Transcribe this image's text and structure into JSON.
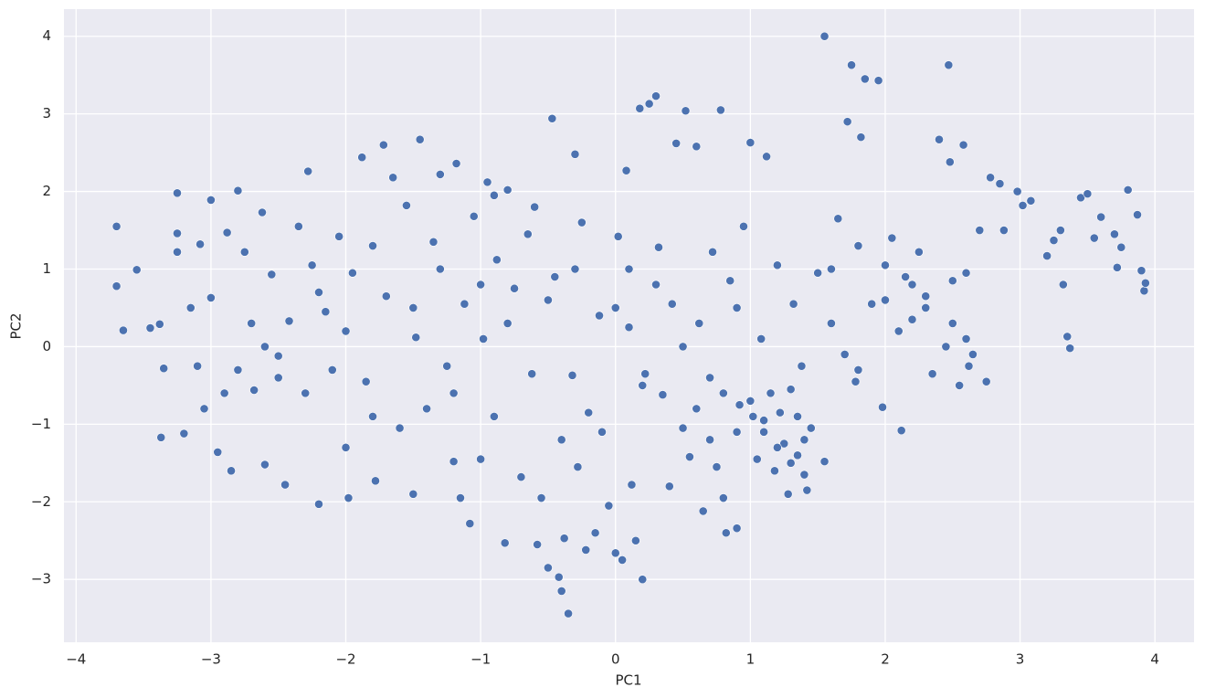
{
  "chart_data": {
    "type": "scatter",
    "x_label": "PC1",
    "y_label": "PC2",
    "color": "#4c72b0",
    "grid": true,
    "xlim": [
      -4.09,
      4.29
    ],
    "ylim": [
      -3.81,
      4.35
    ],
    "xticks": [
      {
        "value": -4,
        "label": "−4"
      },
      {
        "value": -3,
        "label": "−3"
      },
      {
        "value": -2,
        "label": "−2"
      },
      {
        "value": -1,
        "label": "−1"
      },
      0,
      1,
      2,
      3,
      4
    ],
    "yticks": [
      {
        "value": -3,
        "label": "−3"
      },
      {
        "value": -2,
        "label": "−2"
      },
      {
        "value": -1,
        "label": "−1"
      },
      0,
      1,
      2,
      3,
      4
    ],
    "x": [
      -3.7,
      -3.7,
      -3.65,
      -3.55,
      -3.45,
      -3.38,
      -3.35,
      -3.37,
      -3.25,
      -3.25,
      -3.25,
      -3.2,
      -3.15,
      -3.1,
      -3.08,
      -3.05,
      -3.0,
      -3.0,
      -2.95,
      -2.9,
      -2.88,
      -2.85,
      -2.8,
      -2.75,
      -2.7,
      -2.68,
      -2.62,
      -2.6,
      -2.55,
      -2.5,
      -2.45,
      -2.42,
      -2.35,
      -2.3,
      -2.28,
      -2.25,
      -2.2,
      -2.15,
      -2.1,
      -2.05,
      -2.0,
      -1.98,
      -1.95,
      -1.88,
      -1.85,
      -1.8,
      -1.78,
      -1.72,
      -1.7,
      -1.65,
      -1.6,
      -1.55,
      -1.5,
      -1.48,
      -1.45,
      -1.4,
      -1.35,
      -1.3,
      -1.25,
      -1.2,
      -1.18,
      -1.15,
      -1.12,
      -1.08,
      -1.05,
      -1.0,
      -0.98,
      -0.95,
      -0.9,
      -0.88,
      -0.82,
      -0.8,
      -0.75,
      -0.7,
      -0.65,
      -0.62,
      -0.58,
      -0.55,
      -0.5,
      -0.47,
      -0.45,
      -0.42,
      -0.4,
      -0.38,
      -0.35,
      -0.32,
      -0.3,
      -0.28,
      -0.25,
      -0.22,
      -0.2,
      -0.15,
      -0.12,
      -0.1,
      -0.05,
      0,
      0.02,
      0.05,
      0.08,
      0.1,
      0.12,
      0.15,
      0.18,
      0.2,
      0.22,
      0.25,
      0.3,
      0.32,
      0.35,
      0.4,
      0.42,
      0.45,
      0.5,
      0.52,
      0.55,
      0.6,
      0.62,
      0.65,
      0.7,
      0.72,
      0.75,
      0.78,
      0.8,
      0.82,
      0.85,
      0.9,
      0.92,
      0.95,
      1,
      1.02,
      1.05,
      1.08,
      1.1,
      1.12,
      1.15,
      1.18,
      1.2,
      1.22,
      1.25,
      1.28,
      1.3,
      1.32,
      1.35,
      1.38,
      1.4,
      1.42,
      1.45,
      1.5,
      1.55,
      1.55,
      1.6,
      1.65,
      1.7,
      1.72,
      1.75,
      1.78,
      1.8,
      1.82,
      1.85,
      1.9,
      1.95,
      1.98,
      2,
      2.05,
      2.1,
      2.12,
      2.15,
      2.2,
      2.25,
      2.3,
      2.35,
      2.4,
      2.45,
      2.47,
      2.48,
      2.5,
      2.55,
      2.58,
      2.6,
      2.62,
      2.7,
      2.75,
      2.78,
      2.85,
      2.88,
      2.98,
      3.02,
      3.08,
      3.2,
      3.25,
      3.3,
      3.32,
      3.35,
      3.37,
      3.45,
      3.5,
      3.55,
      3.6,
      3.7,
      3.72,
      3.75,
      3.8,
      3.87,
      3.9,
      3.92,
      3.93,
      -2.0,
      -1.5,
      -1.0,
      -0.5,
      0,
      0.5,
      -2.5,
      -2.8,
      -1.8,
      -0.8,
      -0.3,
      0.3,
      0.8,
      1.0,
      1.1,
      1.2,
      1.3,
      0.7,
      0.6,
      0.9,
      1.35,
      1.4,
      2.3,
      2.5,
      2.6,
      2.2,
      2.0,
      -1.3,
      -0.6,
      -0.9,
      0.1,
      -2.2,
      -2.6,
      -1.2,
      -0.4,
      0.2,
      0.9,
      1.6,
      1.8,
      2.65
    ],
    "values": [
      1.55,
      0.78,
      0.21,
      0.99,
      0.24,
      0.29,
      -0.28,
      -1.17,
      1.98,
      1.46,
      1.22,
      -1.12,
      0.5,
      -0.25,
      1.32,
      -0.8,
      1.89,
      0.63,
      -1.36,
      -0.6,
      1.47,
      -1.6,
      2.01,
      1.22,
      0.3,
      -0.56,
      1.73,
      -1.52,
      0.93,
      -0.12,
      -1.78,
      0.33,
      1.55,
      -0.6,
      2.26,
      1.05,
      -2.03,
      0.45,
      -0.3,
      1.42,
      -1.3,
      -1.95,
      0.95,
      2.44,
      -0.45,
      1.3,
      -1.73,
      2.6,
      0.65,
      2.18,
      -1.05,
      1.82,
      -1.9,
      0.12,
      2.67,
      -0.8,
      1.35,
      2.22,
      -0.25,
      -1.48,
      2.36,
      -1.95,
      0.55,
      -2.28,
      1.68,
      -1.45,
      0.1,
      2.12,
      -0.9,
      1.12,
      -2.53,
      2.02,
      0.75,
      -1.68,
      1.45,
      -0.35,
      -2.55,
      -1.95,
      -2.85,
      2.94,
      0.9,
      -2.97,
      -3.15,
      -2.47,
      -3.44,
      -0.37,
      2.48,
      -1.55,
      1.6,
      -2.62,
      -0.85,
      -2.4,
      0.4,
      -1.1,
      -2.05,
      -2.66,
      1.42,
      -2.75,
      2.27,
      0.25,
      -1.78,
      -2.5,
      3.07,
      -3.0,
      -0.35,
      3.13,
      3.23,
      1.28,
      -0.62,
      -1.8,
      0.55,
      2.62,
      -1.05,
      3.04,
      -1.42,
      2.58,
      0.3,
      -2.12,
      -0.4,
      1.22,
      -1.55,
      3.05,
      -1.95,
      -2.4,
      0.85,
      -2.34,
      -0.75,
      1.55,
      2.63,
      -0.9,
      -1.45,
      0.1,
      -1.1,
      2.45,
      -0.6,
      -1.6,
      1.05,
      -0.85,
      -1.25,
      -1.9,
      -0.55,
      0.55,
      -1.4,
      -0.25,
      -1.65,
      -1.85,
      -1.05,
      0.95,
      -1.48,
      4.0,
      0.3,
      1.65,
      -0.1,
      2.9,
      3.63,
      -0.45,
      1.3,
      2.7,
      3.45,
      0.55,
      3.43,
      -0.78,
      1.05,
      1.4,
      0.2,
      -1.08,
      0.9,
      0.35,
      1.22,
      0.65,
      -0.35,
      2.67,
      0,
      3.63,
      2.38,
      0.85,
      -0.5,
      2.6,
      0.95,
      -0.25,
      1.5,
      -0.45,
      2.18,
      2.1,
      1.5,
      2.0,
      1.82,
      1.88,
      1.17,
      1.37,
      1.5,
      0.8,
      0.13,
      -0.02,
      1.92,
      1.97,
      1.4,
      1.67,
      1.45,
      1.02,
      1.28,
      2.02,
      1.7,
      0.98,
      0.72,
      0.82,
      0.2,
      0.5,
      0.8,
      0.6,
      0.5,
      0,
      -0.4,
      -0.3,
      -0.9,
      0.3,
      1.0,
      0.8,
      -0.6,
      -0.7,
      -0.95,
      -1.3,
      -1.5,
      -1.2,
      -0.8,
      -1.1,
      -0.9,
      -1.2,
      0.5,
      0.3,
      0.1,
      0.8,
      0.6,
      1.0,
      1.8,
      1.95,
      1.0,
      0.7,
      0,
      -0.6,
      -1.2,
      -0.5,
      0.5,
      1.0,
      -0.3,
      -0.1
    ]
  }
}
